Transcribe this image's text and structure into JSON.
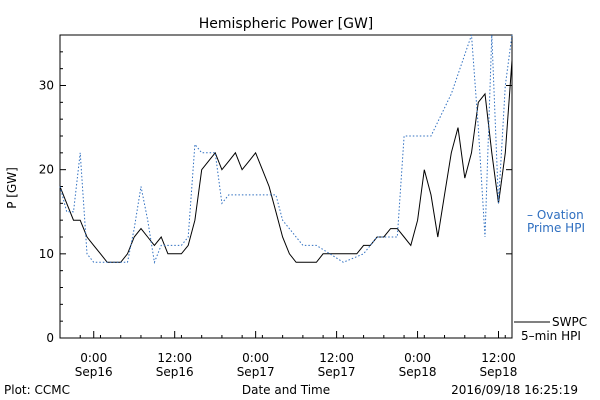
{
  "chart_data": {
    "type": "line",
    "title": "Hemispheric Power [GW]",
    "ylabel": "P [GW]",
    "xlabel": "Date and Time",
    "ylim": [
      0,
      36
    ],
    "xlim": [
      "2016-09-15 19:00",
      "2016-09-18 14:00"
    ],
    "yticks": [
      0,
      10,
      20,
      30
    ],
    "xticks": [
      {
        "time": "2016-09-16 00:00",
        "label1": "0:00",
        "label2": "Sep16"
      },
      {
        "time": "2016-09-16 12:00",
        "label1": "12:00",
        "label2": "Sep16"
      },
      {
        "time": "2016-09-17 00:00",
        "label1": "0:00",
        "label2": "Sep17"
      },
      {
        "time": "2016-09-17 12:00",
        "label1": "12:00",
        "label2": "Sep17"
      },
      {
        "time": "2016-09-18 00:00",
        "label1": "0:00",
        "label2": "Sep18"
      },
      {
        "time": "2016-09-18 12:00",
        "label1": "12:00",
        "label2": "Sep18"
      }
    ],
    "series": [
      {
        "name": "SWPC 5-min HPI",
        "color": "#000000",
        "style": "solid",
        "points": [
          [
            "2016-09-15 19:00",
            18
          ],
          [
            "2016-09-15 20:00",
            16
          ],
          [
            "2016-09-15 21:00",
            14
          ],
          [
            "2016-09-15 22:00",
            14
          ],
          [
            "2016-09-15 23:00",
            12
          ],
          [
            "2016-09-16 00:00",
            11
          ],
          [
            "2016-09-16 01:00",
            10
          ],
          [
            "2016-09-16 02:00",
            9
          ],
          [
            "2016-09-16 04:00",
            9
          ],
          [
            "2016-09-16 05:00",
            10
          ],
          [
            "2016-09-16 06:00",
            12
          ],
          [
            "2016-09-16 07:00",
            13
          ],
          [
            "2016-09-16 08:00",
            12
          ],
          [
            "2016-09-16 09:00",
            11
          ],
          [
            "2016-09-16 10:00",
            12
          ],
          [
            "2016-09-16 11:00",
            10
          ],
          [
            "2016-09-16 13:00",
            10
          ],
          [
            "2016-09-16 14:00",
            11
          ],
          [
            "2016-09-16 15:00",
            14
          ],
          [
            "2016-09-16 16:00",
            20
          ],
          [
            "2016-09-16 17:00",
            21
          ],
          [
            "2016-09-16 18:00",
            22
          ],
          [
            "2016-09-16 19:00",
            20
          ],
          [
            "2016-09-16 20:00",
            21
          ],
          [
            "2016-09-16 21:00",
            22
          ],
          [
            "2016-09-16 22:00",
            20
          ],
          [
            "2016-09-16 23:00",
            21
          ],
          [
            "2016-09-17 00:00",
            22
          ],
          [
            "2016-09-17 01:00",
            20
          ],
          [
            "2016-09-17 02:00",
            18
          ],
          [
            "2016-09-17 03:00",
            15
          ],
          [
            "2016-09-17 04:00",
            12
          ],
          [
            "2016-09-17 05:00",
            10
          ],
          [
            "2016-09-17 06:00",
            9
          ],
          [
            "2016-09-17 09:00",
            9
          ],
          [
            "2016-09-17 10:00",
            10
          ],
          [
            "2016-09-17 15:00",
            10
          ],
          [
            "2016-09-17 16:00",
            11
          ],
          [
            "2016-09-17 17:00",
            11
          ],
          [
            "2016-09-17 18:00",
            12
          ],
          [
            "2016-09-17 19:00",
            12
          ],
          [
            "2016-09-17 20:00",
            13
          ],
          [
            "2016-09-17 21:00",
            13
          ],
          [
            "2016-09-17 22:00",
            12
          ],
          [
            "2016-09-17 23:00",
            11
          ],
          [
            "2016-09-18 00:00",
            14
          ],
          [
            "2016-09-18 01:00",
            20
          ],
          [
            "2016-09-18 02:00",
            17
          ],
          [
            "2016-09-18 03:00",
            12
          ],
          [
            "2016-09-18 04:00",
            17
          ],
          [
            "2016-09-18 05:00",
            22
          ],
          [
            "2016-09-18 06:00",
            25
          ],
          [
            "2016-09-18 07:00",
            19
          ],
          [
            "2016-09-18 08:00",
            22
          ],
          [
            "2016-09-18 09:00",
            28
          ],
          [
            "2016-09-18 10:00",
            29
          ],
          [
            "2016-09-18 11:00",
            22
          ],
          [
            "2016-09-18 12:00",
            16
          ],
          [
            "2016-09-18 13:00",
            22
          ],
          [
            "2016-09-18 14:00",
            33
          ]
        ]
      },
      {
        "name": "Ovation Prime HPI",
        "color": "#2f6fc0",
        "style": "dotted",
        "points": [
          [
            "2016-09-15 19:00",
            18
          ],
          [
            "2016-09-15 20:00",
            15
          ],
          [
            "2016-09-15 21:00",
            15
          ],
          [
            "2016-09-15 22:00",
            22
          ],
          [
            "2016-09-15 23:00",
            10
          ],
          [
            "2016-09-16 00:00",
            9
          ],
          [
            "2016-09-16 05:00",
            9
          ],
          [
            "2016-09-16 06:00",
            13
          ],
          [
            "2016-09-16 07:00",
            18
          ],
          [
            "2016-09-16 08:00",
            14
          ],
          [
            "2016-09-16 09:00",
            9
          ],
          [
            "2016-09-16 10:00",
            11
          ],
          [
            "2016-09-16 13:00",
            11
          ],
          [
            "2016-09-16 14:00",
            12
          ],
          [
            "2016-09-16 15:00",
            23
          ],
          [
            "2016-09-16 16:00",
            22
          ],
          [
            "2016-09-16 18:00",
            22
          ],
          [
            "2016-09-16 19:00",
            16
          ],
          [
            "2016-09-16 20:00",
            17
          ],
          [
            "2016-09-17 03:00",
            17
          ],
          [
            "2016-09-17 04:00",
            14
          ],
          [
            "2016-09-17 07:00",
            11
          ],
          [
            "2016-09-17 09:00",
            11
          ],
          [
            "2016-09-17 11:00",
            10
          ],
          [
            "2016-09-17 13:00",
            9
          ],
          [
            "2016-09-17 16:00",
            10
          ],
          [
            "2016-09-17 18:00",
            12
          ],
          [
            "2016-09-17 21:00",
            12
          ],
          [
            "2016-09-17 22:00",
            24
          ],
          [
            "2016-09-18 02:00",
            24
          ],
          [
            "2016-09-18 05:00",
            29
          ],
          [
            "2016-09-18 08:00",
            36
          ],
          [
            "2016-09-18 09:00",
            25
          ],
          [
            "2016-09-18 10:00",
            12
          ],
          [
            "2016-09-18 11:00",
            36
          ],
          [
            "2016-09-18 12:00",
            16
          ],
          [
            "2016-09-18 13:00",
            30
          ],
          [
            "2016-09-18 14:00",
            36
          ]
        ]
      }
    ]
  },
  "legend": {
    "ovation_line1": "– Ovation",
    "ovation_line2": "Prime HPI",
    "swpc_line1": "SWPC",
    "swpc_line2": "5–min HPI"
  },
  "footer": {
    "left": "Plot: CCMC",
    "center": "Date and Time",
    "right": "2016/09/18 16:25:19"
  }
}
